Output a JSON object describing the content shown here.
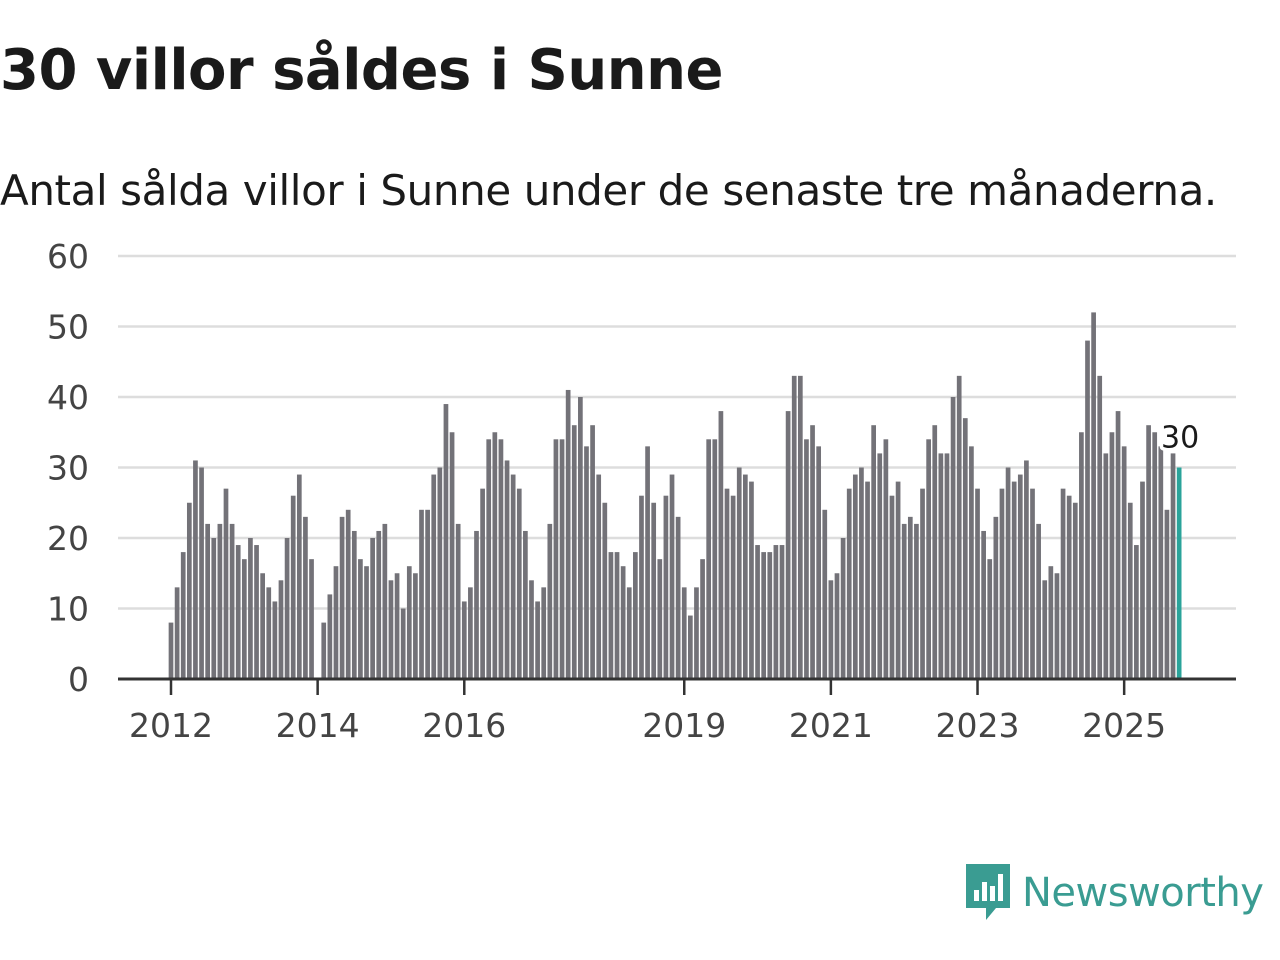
{
  "title": "30 villor såldes i Sunne",
  "subtitle": "Antal sålda villor i Sunne under de senaste tre månaderna.",
  "logo": {
    "text": "Newsworthy",
    "icon": "newsworthy-logo-icon"
  },
  "colors": {
    "bar": "#737278",
    "highlight": "#2aa39a",
    "grid": "#dddddd",
    "axis": "#333333",
    "brand": "#3a9c92"
  },
  "chart_data": {
    "type": "bar",
    "title": "30 villor såldes i Sunne",
    "xlabel": "",
    "ylabel": "",
    "ylim": [
      0,
      60
    ],
    "yticks": [
      0,
      10,
      20,
      30,
      40,
      50,
      60
    ],
    "xticks": [
      {
        "label": "2012",
        "index": 0
      },
      {
        "label": "2014",
        "index": 24
      },
      {
        "label": "2016",
        "index": 48
      },
      {
        "label": "2019",
        "index": 84
      },
      {
        "label": "2021",
        "index": 108
      },
      {
        "label": "2023",
        "index": 132
      },
      {
        "label": "2025",
        "index": 156
      }
    ],
    "start": "2012-01",
    "highlight_label": "30",
    "values": [
      8,
      13,
      18,
      25,
      31,
      30,
      22,
      20,
      22,
      27,
      22,
      19,
      17,
      20,
      19,
      15,
      13,
      11,
      14,
      20,
      26,
      29,
      23,
      17,
      0,
      8,
      12,
      16,
      23,
      24,
      21,
      17,
      16,
      20,
      21,
      22,
      14,
      15,
      10,
      16,
      15,
      24,
      24,
      29,
      30,
      39,
      35,
      22,
      11,
      13,
      21,
      27,
      34,
      35,
      34,
      31,
      29,
      27,
      21,
      14,
      11,
      13,
      22,
      34,
      34,
      41,
      36,
      40,
      33,
      36,
      29,
      25,
      18,
      18,
      16,
      13,
      18,
      26,
      33,
      25,
      17,
      26,
      29,
      23,
      13,
      9,
      13,
      17,
      34,
      34,
      38,
      27,
      26,
      30,
      29,
      28,
      19,
      18,
      18,
      19,
      19,
      38,
      43,
      43,
      34,
      36,
      33,
      24,
      14,
      15,
      20,
      27,
      29,
      30,
      28,
      36,
      32,
      34,
      26,
      28,
      22,
      23,
      22,
      27,
      34,
      36,
      32,
      32,
      40,
      43,
      37,
      33,
      27,
      21,
      17,
      23,
      27,
      30,
      28,
      29,
      31,
      27,
      22,
      14,
      16,
      15,
      27,
      26,
      25,
      35,
      48,
      52,
      43,
      32,
      35,
      38,
      33,
      25,
      19,
      28,
      36,
      35,
      33,
      24,
      32,
      30
    ]
  }
}
